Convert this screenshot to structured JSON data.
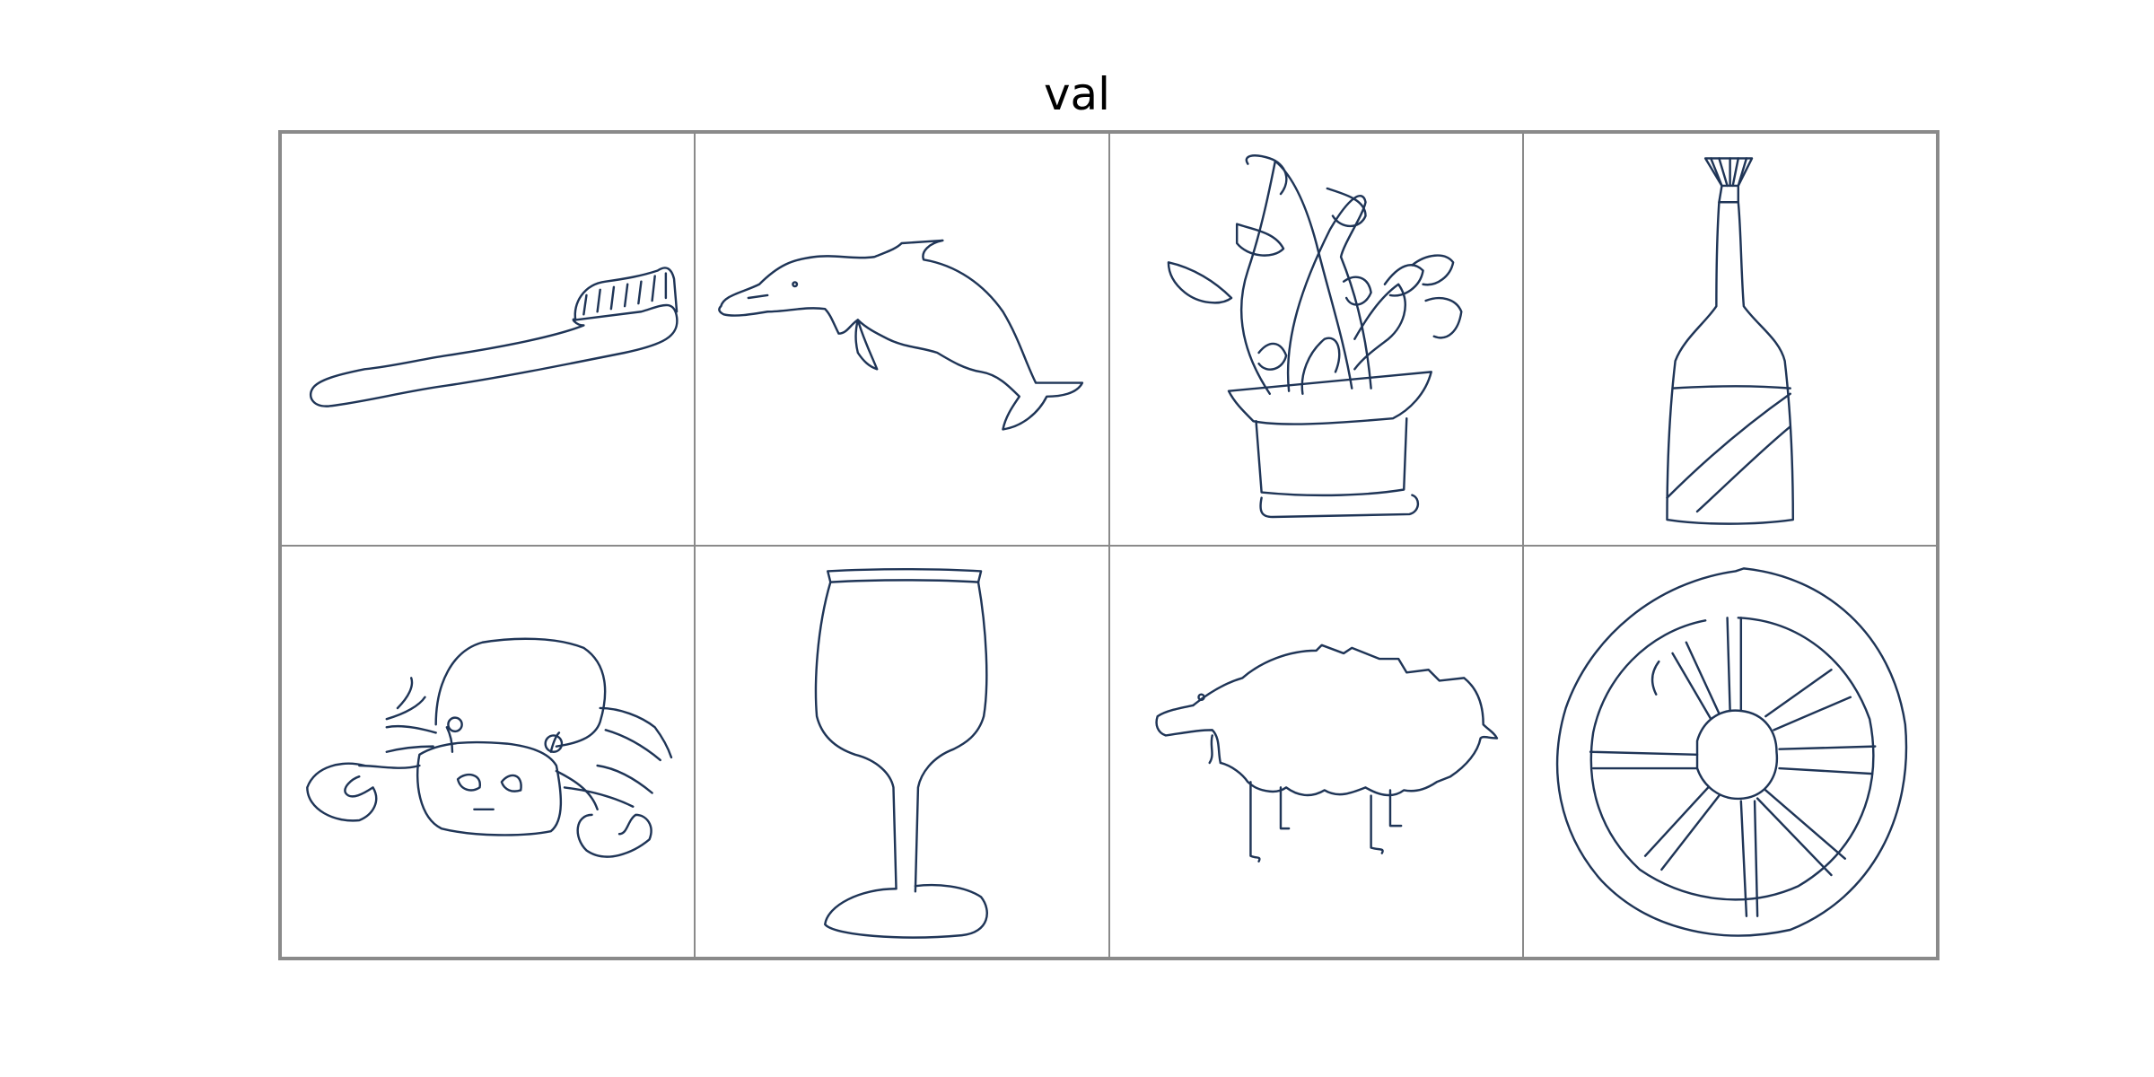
{
  "title": "val",
  "colors": {
    "ink": "#1f3557",
    "border": "#8a8a8a",
    "background": "#ffffff"
  },
  "cells": [
    {
      "icon": "toothbrush-icon"
    },
    {
      "icon": "dolphin-icon"
    },
    {
      "icon": "potted-plant-icon"
    },
    {
      "icon": "wine-bottle-icon"
    },
    {
      "icon": "crab-icon"
    },
    {
      "icon": "wine-glass-icon"
    },
    {
      "icon": "sheep-icon"
    },
    {
      "icon": "wheel-icon"
    }
  ]
}
